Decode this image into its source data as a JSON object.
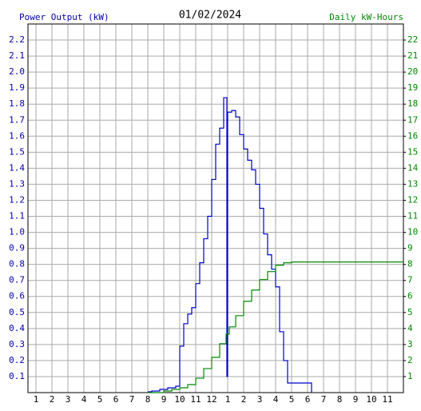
{
  "chart_data": {
    "type": "step",
    "title": "01/02/2024",
    "xlim": [
      0.5,
      24
    ],
    "xticks": [
      1,
      2,
      3,
      4,
      5,
      6,
      7,
      8,
      9,
      10,
      11,
      12,
      {
        "value": 13,
        "label": "1"
      },
      {
        "value": 14,
        "label": "2"
      },
      {
        "value": 15,
        "label": "3"
      },
      {
        "value": 16,
        "label": "4"
      },
      {
        "value": 17,
        "label": "5"
      },
      {
        "value": 18,
        "label": "6"
      },
      {
        "value": 19,
        "label": "7"
      },
      {
        "value": 20,
        "label": "8"
      },
      {
        "value": 21,
        "label": "9"
      },
      {
        "value": 22,
        "label": "10"
      },
      {
        "value": 23,
        "label": "11"
      }
    ],
    "ylim": [
      0,
      2.3
    ],
    "yticks": [
      0.1,
      0.2,
      0.3,
      0.4,
      0.5,
      0.6,
      0.7,
      0.8,
      0.9,
      {
        "value": 1,
        "label": "1.0"
      },
      1.1,
      1.2,
      1.3,
      1.4,
      1.5,
      1.6,
      1.7,
      1.8,
      1.9,
      {
        "value": 2,
        "label": "2.0"
      },
      2.1,
      2.2
    ],
    "y2lim": [
      0,
      23
    ],
    "y2ticks": [
      1,
      2,
      3,
      4,
      5,
      6,
      7,
      8,
      9,
      10,
      11,
      12,
      13,
      14,
      15,
      16,
      17,
      18,
      19,
      20,
      21,
      22
    ],
    "grid": true,
    "series": [
      {
        "name": "Power Output (kW)",
        "color": "#0000cc",
        "x": [
          8,
          8.25,
          8.5,
          8.75,
          9,
          9.25,
          9.5,
          9.75,
          10,
          10.25,
          10.5,
          10.75,
          11,
          11.25,
          11.5,
          11.75,
          12,
          12.25,
          12.5,
          12.75,
          12.95,
          13,
          13.25,
          13.5,
          13.75,
          14,
          14.25,
          14.5,
          14.75,
          15,
          15.25,
          15.5,
          15.75,
          16,
          16.25,
          16.5,
          16.75,
          18.25
        ],
        "values": [
          0.005,
          0.01,
          0.01,
          0.02,
          0.02,
          0.03,
          0.03,
          0.04,
          0.29,
          0.43,
          0.49,
          0.53,
          0.68,
          0.81,
          0.96,
          1.1,
          1.33,
          1.55,
          1.65,
          1.84,
          0.1,
          1.75,
          1.76,
          1.72,
          1.61,
          1.52,
          1.45,
          1.39,
          1.3,
          1.15,
          0.99,
          0.86,
          0.77,
          0.66,
          0.38,
          0.2,
          0.06,
          0
        ]
      },
      {
        "name": "Daily kW-Hours",
        "color": "#008800",
        "axis": "y2",
        "x": [
          8,
          9,
          9.5,
          10,
          10.5,
          11,
          11.5,
          12,
          12.5,
          12.9,
          13.1,
          13.5,
          14,
          14.5,
          15,
          15.5,
          16,
          16.5,
          17,
          24
        ],
        "values": [
          0,
          0.1,
          0.2,
          0.3,
          0.5,
          0.9,
          1.5,
          2.2,
          3.05,
          3.65,
          4.1,
          4.8,
          5.7,
          6.4,
          7.05,
          7.55,
          7.95,
          8.1,
          8.15,
          8.15
        ]
      }
    ]
  }
}
